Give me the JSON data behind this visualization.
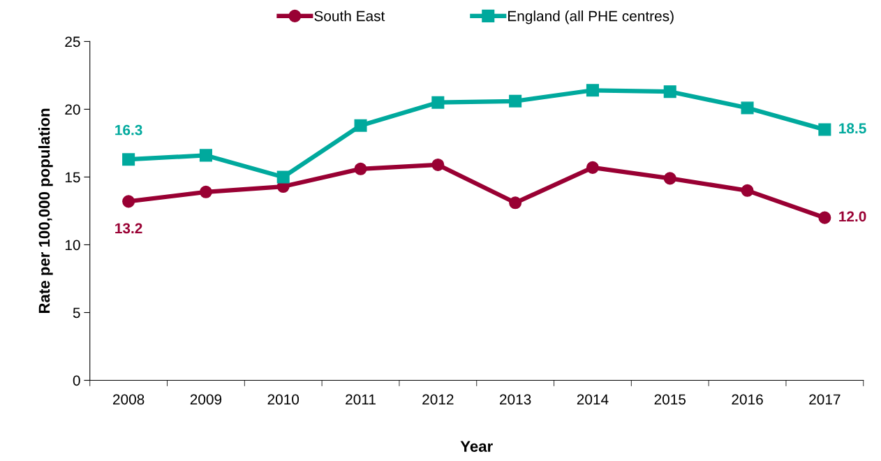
{
  "chart_data": {
    "type": "line",
    "xlabel": "Year",
    "ylabel": "Rate per 100,000 population",
    "categories": [
      "2008",
      "2009",
      "2010",
      "2011",
      "2012",
      "2013",
      "2014",
      "2015",
      "2016",
      "2017"
    ],
    "series": [
      {
        "name": "South East",
        "color": "#990033",
        "marker": "circle",
        "values": [
          13.2,
          13.9,
          14.3,
          15.6,
          15.9,
          13.1,
          15.7,
          14.9,
          14.0,
          12.0
        ],
        "value_labels": [
          "13.2",
          null,
          null,
          null,
          null,
          null,
          null,
          null,
          null,
          "12.0"
        ]
      },
      {
        "name": "England (all PHE centres)",
        "color": "#00A99D",
        "marker": "square",
        "values": [
          16.3,
          16.6,
          15.0,
          18.8,
          20.5,
          20.6,
          21.4,
          21.3,
          20.1,
          18.5
        ],
        "value_labels": [
          "16.3",
          null,
          null,
          null,
          null,
          null,
          null,
          null,
          null,
          "18.5"
        ]
      }
    ],
    "ylim": [
      0,
      25
    ],
    "yticks": [
      0,
      5,
      10,
      15,
      20,
      25
    ],
    "grid": false,
    "legend": "top",
    "line_style": "solid"
  }
}
